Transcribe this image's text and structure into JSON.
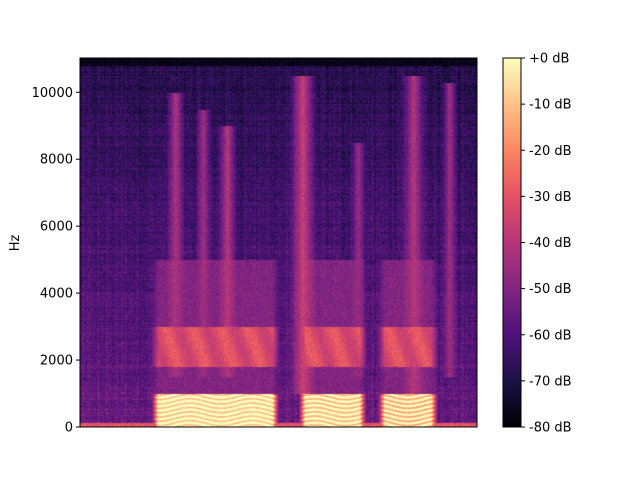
{
  "chart_data": {
    "type": "heatmap",
    "subtype": "spectrogram",
    "title": "",
    "xlabel": "",
    "ylabel": "Hz",
    "ylim": [
      0,
      11025
    ],
    "y_ticks": [
      0,
      2000,
      4000,
      6000,
      8000,
      10000
    ],
    "y_tick_labels": [
      "0",
      "2000",
      "4000",
      "6000",
      "8000",
      "10000"
    ],
    "x_ticks": [],
    "grid": false,
    "colormap": "magma",
    "colorbar": {
      "range_db": [
        -80,
        0
      ],
      "ticks": [
        0,
        -10,
        -20,
        -30,
        -40,
        -50,
        -60,
        -70,
        -80
      ],
      "tick_labels": [
        "+0 dB",
        "-10 dB",
        "-20 dB",
        "-30 dB",
        "-40 dB",
        "-50 dB",
        "-60 dB",
        "-70 dB",
        "-80 dB"
      ]
    },
    "time_range": [
      0,
      1
    ],
    "harmonic_band_hz": [
      0,
      1000
    ],
    "formant_band_hz": [
      1800,
      3000
    ],
    "signal_top_hz": 10800,
    "voiced_segments": [
      {
        "start": 0.18,
        "end": 0.5,
        "level_db": -12
      },
      {
        "start": 0.55,
        "end": 0.72,
        "level_db": -14
      },
      {
        "start": 0.75,
        "end": 0.9,
        "level_db": -16
      }
    ],
    "fricative_bursts": [
      {
        "t": 0.24,
        "width": 0.025,
        "from_hz": 1500,
        "to_hz": 10000,
        "level_db": -42
      },
      {
        "t": 0.31,
        "width": 0.02,
        "from_hz": 1500,
        "to_hz": 9500,
        "level_db": -44
      },
      {
        "t": 0.37,
        "width": 0.025,
        "from_hz": 1500,
        "to_hz": 9000,
        "level_db": -40
      },
      {
        "t": 0.56,
        "width": 0.035,
        "from_hz": 1000,
        "to_hz": 10500,
        "level_db": -36
      },
      {
        "t": 0.7,
        "width": 0.02,
        "from_hz": 1500,
        "to_hz": 8500,
        "level_db": -46
      },
      {
        "t": 0.84,
        "width": 0.03,
        "from_hz": 1000,
        "to_hz": 10500,
        "level_db": -40
      },
      {
        "t": 0.93,
        "width": 0.02,
        "from_hz": 1500,
        "to_hz": 10300,
        "level_db": -44
      }
    ],
    "background_db": {
      "low_freq": -55,
      "high_freq": -68,
      "silence": -80
    }
  }
}
